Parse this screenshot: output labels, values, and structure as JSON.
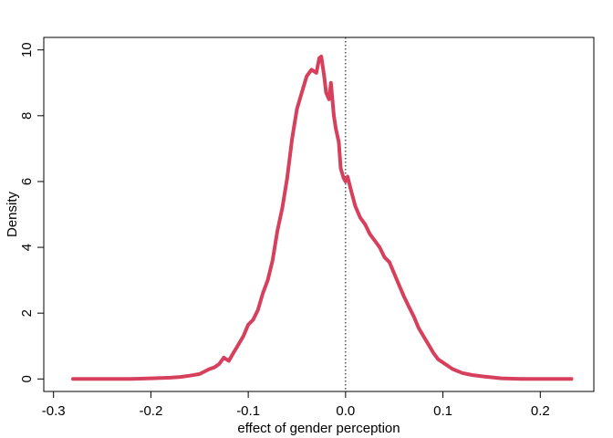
{
  "chart_data": {
    "type": "line",
    "title": "",
    "xlabel": "effect of gender perception",
    "ylabel": "Density",
    "xlim": [
      -0.31,
      0.255
    ],
    "ylim": [
      -0.38,
      10.38
    ],
    "x_ticks": [
      -0.3,
      -0.2,
      -0.1,
      0.0,
      0.1,
      0.2
    ],
    "x_tick_labels": [
      "-0.3",
      "-0.2",
      "-0.1",
      "0.0",
      "0.1",
      "0.2"
    ],
    "y_ticks": [
      0,
      2,
      4,
      6,
      8,
      10
    ],
    "y_tick_labels": [
      "0",
      "2",
      "4",
      "6",
      "8",
      "10"
    ],
    "reference_line": {
      "x": 0,
      "style": "dotted",
      "color": "#000000"
    },
    "grid": false,
    "legend": "none",
    "series": [
      {
        "color": "#d6405c",
        "x": [
          -0.28,
          -0.26,
          -0.24,
          -0.22,
          -0.2,
          -0.18,
          -0.17,
          -0.16,
          -0.15,
          -0.14,
          -0.135,
          -0.13,
          -0.125,
          -0.12,
          -0.115,
          -0.11,
          -0.105,
          -0.1,
          -0.095,
          -0.09,
          -0.085,
          -0.08,
          -0.075,
          -0.07,
          -0.065,
          -0.06,
          -0.055,
          -0.05,
          -0.045,
          -0.04,
          -0.035,
          -0.03,
          -0.027,
          -0.025,
          -0.022,
          -0.02,
          -0.017,
          -0.015,
          -0.012,
          -0.01,
          -0.007,
          -0.005,
          -0.002,
          0.0,
          0.002,
          0.005,
          0.01,
          0.015,
          0.02,
          0.025,
          0.03,
          0.035,
          0.04,
          0.045,
          0.05,
          0.055,
          0.06,
          0.065,
          0.07,
          0.075,
          0.08,
          0.085,
          0.09,
          0.095,
          0.1,
          0.11,
          0.12,
          0.13,
          0.14,
          0.15,
          0.16,
          0.18,
          0.2,
          0.22,
          0.232
        ],
        "y": [
          0.0,
          0.0,
          0.0,
          0.0,
          0.02,
          0.04,
          0.06,
          0.1,
          0.15,
          0.3,
          0.35,
          0.45,
          0.65,
          0.55,
          0.8,
          1.05,
          1.3,
          1.65,
          1.8,
          2.1,
          2.6,
          3.0,
          3.6,
          4.5,
          5.2,
          6.1,
          7.3,
          8.2,
          8.7,
          9.2,
          9.4,
          9.3,
          9.75,
          9.8,
          9.2,
          8.7,
          8.5,
          9.0,
          8.0,
          7.6,
          7.2,
          6.4,
          6.1,
          6.0,
          6.15,
          5.8,
          5.25,
          4.9,
          4.7,
          4.4,
          4.2,
          4.0,
          3.7,
          3.55,
          3.2,
          2.85,
          2.5,
          2.2,
          1.9,
          1.55,
          1.3,
          1.05,
          0.8,
          0.6,
          0.5,
          0.3,
          0.18,
          0.12,
          0.08,
          0.05,
          0.02,
          0.0,
          0.0,
          0.0,
          0.0
        ]
      }
    ]
  }
}
